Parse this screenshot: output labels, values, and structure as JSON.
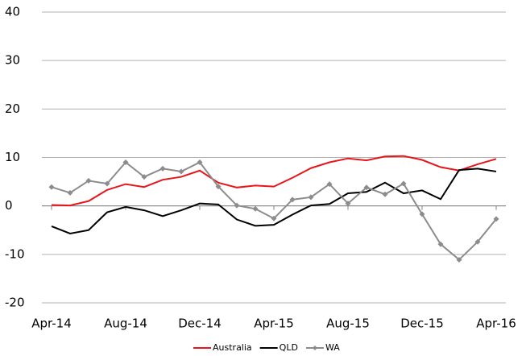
{
  "chart_data": {
    "type": "line",
    "categories": [
      "Apr-14",
      null,
      null,
      null,
      "Aug-14",
      null,
      null,
      null,
      "Dec-14",
      null,
      null,
      null,
      "Apr-15",
      null,
      null,
      null,
      "Aug-15",
      null,
      null,
      null,
      "Dec-15",
      null,
      null,
      null,
      "Apr-16"
    ],
    "series": [
      {
        "name": "Australia",
        "color": "#e8161b",
        "values": [
          0.2,
          0.1,
          1.0,
          3.3,
          4.5,
          3.9,
          5.4,
          6.0,
          7.3,
          4.8,
          3.8,
          4.2,
          4.0,
          5.8,
          7.8,
          9.0,
          9.8,
          9.4,
          10.2,
          10.3,
          9.5,
          8.0,
          7.3,
          8.6,
          9.7
        ]
      },
      {
        "name": "QLD",
        "color": "#000000",
        "values": [
          -4.2,
          -5.7,
          -5.0,
          -1.3,
          -0.2,
          -0.9,
          -2.1,
          -0.9,
          0.5,
          0.3,
          -2.8,
          -4.1,
          -3.9,
          -1.8,
          0.1,
          0.4,
          2.6,
          2.9,
          4.8,
          2.6,
          3.2,
          1.4,
          7.4,
          7.7,
          7.1
        ]
      },
      {
        "name": "WA",
        "color": "#8c8c8c",
        "marker": "diamond",
        "values": [
          3.9,
          2.7,
          5.2,
          4.6,
          9.0,
          6.0,
          7.7,
          7.1,
          9.0,
          4.0,
          0.1,
          -0.6,
          -2.6,
          1.3,
          1.8,
          4.5,
          0.5,
          3.8,
          2.4,
          4.6,
          -1.7,
          -7.9,
          -11.1,
          -7.4,
          -2.7
        ]
      }
    ],
    "ylim": [
      -20,
      40
    ],
    "yticks": [
      -20,
      -10,
      0,
      10,
      20,
      30,
      40
    ],
    "grid": true,
    "legend": "bottom"
  }
}
